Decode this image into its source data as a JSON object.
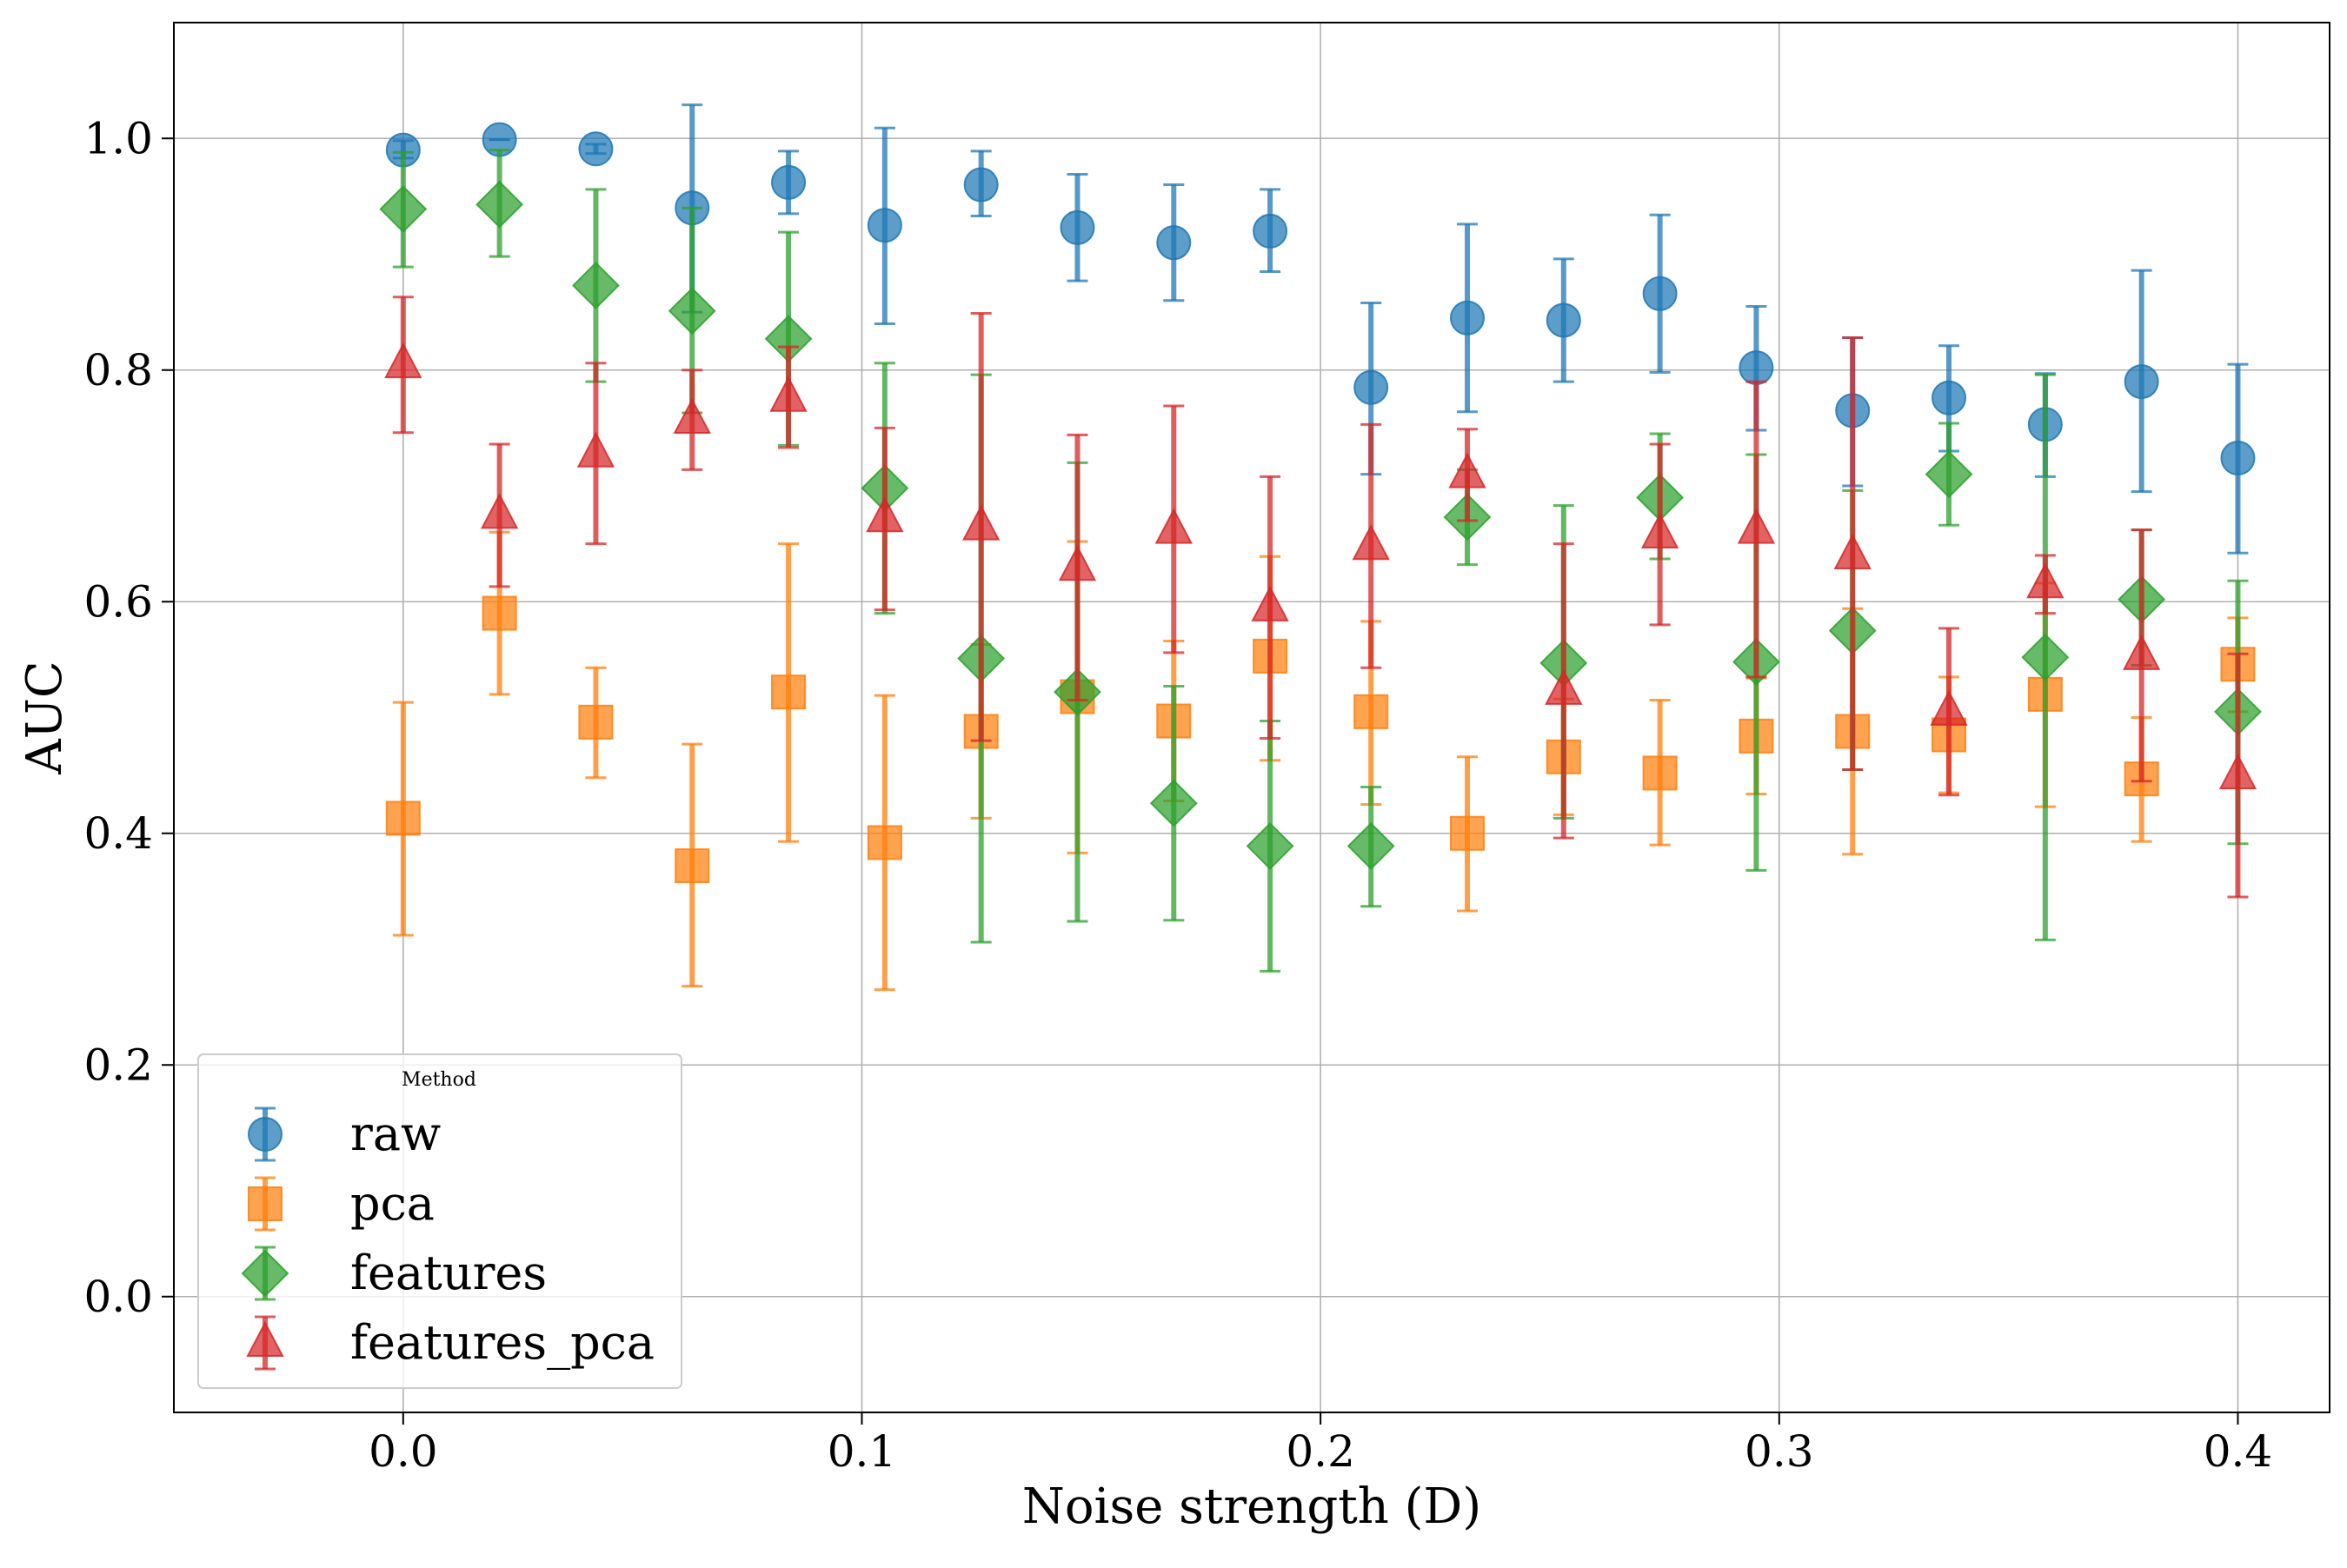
{
  "chart_data": {
    "type": "scatter",
    "title": "",
    "xlabel": "Noise strength (D)",
    "ylabel": "AUC",
    "xlim": [
      -0.05,
      0.42
    ],
    "ylim": [
      -0.1,
      1.1
    ],
    "xticks": [
      0.0,
      0.1,
      0.2,
      0.3,
      0.4
    ],
    "xtick_labels": [
      "0.0",
      "0.1",
      "0.2",
      "0.3",
      "0.4"
    ],
    "yticks": [
      0.0,
      0.2,
      0.4,
      0.6,
      0.8,
      1.0
    ],
    "ytick_labels": [
      "0.0",
      "0.2",
      "0.4",
      "0.6",
      "0.8",
      "1.0"
    ],
    "grid": true,
    "legend": {
      "title": "Method",
      "placement": "lower-left"
    },
    "x": [
      0.0,
      0.021,
      0.042,
      0.063,
      0.084,
      0.105,
      0.126,
      0.147,
      0.168,
      0.189,
      0.211,
      0.232,
      0.253,
      0.274,
      0.295,
      0.316,
      0.337,
      0.358,
      0.379,
      0.4
    ],
    "series": [
      {
        "name": "raw",
        "marker": "circle",
        "color": "#1f77b4",
        "values": [
          0.99,
          0.999,
          0.991,
          0.94,
          0.962,
          0.925,
          0.96,
          0.923,
          0.91,
          0.92,
          0.785,
          0.845,
          0.843,
          0.866,
          0.802,
          0.765,
          0.776,
          0.753,
          0.79,
          0.724
        ],
        "err_low": [
          0.983,
          0.999,
          0.987,
          0.85,
          0.935,
          0.84,
          0.933,
          0.877,
          0.86,
          0.885,
          0.71,
          0.764,
          0.79,
          0.798,
          0.748,
          0.7,
          0.73,
          0.708,
          0.695,
          0.642
        ],
        "err_high": [
          0.998,
          0.999,
          0.995,
          1.029,
          0.989,
          1.009,
          0.989,
          0.969,
          0.96,
          0.956,
          0.858,
          0.926,
          0.896,
          0.934,
          0.855,
          0.828,
          0.821,
          0.797,
          0.886,
          0.805
        ]
      },
      {
        "name": "pca",
        "marker": "square",
        "color": "#ff7f0e",
        "values": [
          0.413,
          0.59,
          0.496,
          0.372,
          0.522,
          0.392,
          0.488,
          0.518,
          0.497,
          0.553,
          0.505,
          0.4,
          0.466,
          0.452,
          0.484,
          0.488,
          0.485,
          0.52,
          0.447,
          0.546
        ],
        "err_low": [
          0.312,
          0.52,
          0.448,
          0.268,
          0.393,
          0.265,
          0.413,
          0.383,
          0.428,
          0.463,
          0.425,
          0.333,
          0.416,
          0.39,
          0.434,
          0.382,
          0.435,
          0.423,
          0.393,
          0.505
        ],
        "err_high": [
          0.513,
          0.66,
          0.543,
          0.477,
          0.65,
          0.519,
          0.563,
          0.652,
          0.566,
          0.639,
          0.583,
          0.466,
          0.516,
          0.515,
          0.534,
          0.594,
          0.535,
          0.616,
          0.5,
          0.586
        ]
      },
      {
        "name": "features",
        "marker": "diamond",
        "color": "#2ca02c",
        "values": [
          0.939,
          0.943,
          0.873,
          0.851,
          0.827,
          0.698,
          0.551,
          0.522,
          0.426,
          0.389,
          0.389,
          0.673,
          0.547,
          0.69,
          0.548,
          0.575,
          0.71,
          0.552,
          0.602,
          0.505
        ],
        "err_low": [
          0.889,
          0.898,
          0.79,
          0.763,
          0.735,
          0.59,
          0.306,
          0.324,
          0.325,
          0.281,
          0.337,
          0.632,
          0.413,
          0.637,
          0.368,
          0.455,
          0.666,
          0.308,
          0.545,
          0.391
        ],
        "err_high": [
          0.988,
          0.99,
          0.956,
          0.94,
          0.919,
          0.806,
          0.796,
          0.72,
          0.527,
          0.497,
          0.44,
          0.714,
          0.683,
          0.745,
          0.727,
          0.696,
          0.754,
          0.796,
          0.662,
          0.618
        ]
      },
      {
        "name": "features_pca",
        "marker": "triangle",
        "color": "#d62728",
        "values": [
          0.805,
          0.675,
          0.728,
          0.757,
          0.776,
          0.672,
          0.665,
          0.63,
          0.662,
          0.595,
          0.648,
          0.71,
          0.523,
          0.658,
          0.662,
          0.64,
          0.505,
          0.615,
          0.553,
          0.45
        ],
        "err_low": [
          0.746,
          0.613,
          0.65,
          0.714,
          0.733,
          0.593,
          0.48,
          0.515,
          0.556,
          0.482,
          0.543,
          0.67,
          0.396,
          0.58,
          0.535,
          0.455,
          0.433,
          0.59,
          0.445,
          0.345
        ],
        "err_high": [
          0.863,
          0.736,
          0.806,
          0.8,
          0.82,
          0.75,
          0.849,
          0.744,
          0.769,
          0.708,
          0.753,
          0.749,
          0.65,
          0.736,
          0.79,
          0.828,
          0.577,
          0.64,
          0.662,
          0.555
        ]
      }
    ]
  }
}
